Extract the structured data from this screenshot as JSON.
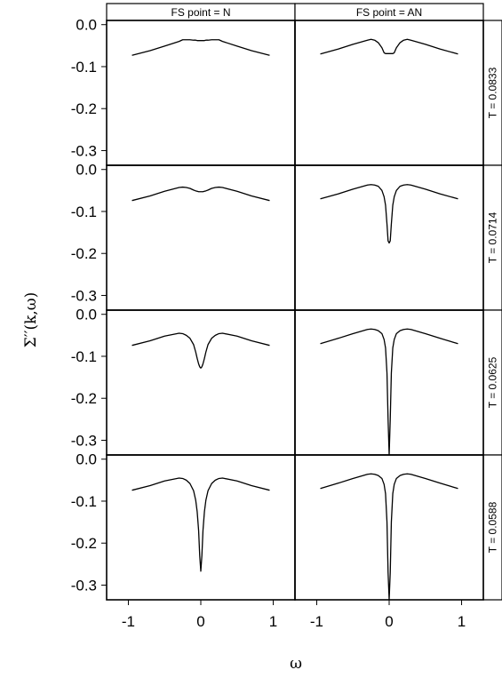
{
  "chart_data": {
    "type": "line",
    "layout": "trellis",
    "ylabel": "Σ′′(k,ω)",
    "xlabel": "ω",
    "xlim": [
      -1.3,
      1.3
    ],
    "ylim": [
      -0.335,
      0.01
    ],
    "xticks": [
      -1,
      0,
      1
    ],
    "yticks": [
      0.0,
      -0.1,
      -0.2,
      -0.3
    ],
    "ytick_labels": [
      "0.0",
      "-0.1",
      "-0.2",
      "-0.3"
    ],
    "columns": [
      {
        "label": "FS point = N"
      },
      {
        "label": "FS point = AN"
      }
    ],
    "rows": [
      {
        "label": "T = 0.0833"
      },
      {
        "label": "T = 0.0714"
      },
      {
        "label": "T = 0.0625"
      },
      {
        "label": "T = 0.0588"
      }
    ],
    "curve_x": [
      -0.95,
      -0.7,
      -0.5,
      -0.3,
      -0.25,
      -0.2,
      -0.15,
      -0.1,
      -0.07,
      -0.05,
      -0.03,
      -0.015,
      0,
      0.015,
      0.03,
      0.05,
      0.07,
      0.1,
      0.15,
      0.2,
      0.25,
      0.3,
      0.5,
      0.7,
      0.95
    ],
    "panels": [
      {
        "row": 0,
        "col": 0,
        "y": [
          -0.073,
          -0.062,
          -0.051,
          -0.04,
          -0.036,
          -0.036,
          -0.036,
          -0.037,
          -0.037,
          -0.038,
          -0.038,
          -0.038,
          -0.038,
          -0.038,
          -0.038,
          -0.038,
          -0.037,
          -0.037,
          -0.036,
          -0.036,
          -0.036,
          -0.04,
          -0.051,
          -0.062,
          -0.073
        ]
      },
      {
        "row": 0,
        "col": 1,
        "y": [
          -0.07,
          -0.058,
          -0.047,
          -0.037,
          -0.035,
          -0.037,
          -0.043,
          -0.055,
          -0.067,
          -0.069,
          -0.069,
          -0.069,
          -0.069,
          -0.069,
          -0.069,
          -0.069,
          -0.067,
          -0.055,
          -0.043,
          -0.037,
          -0.035,
          -0.037,
          -0.047,
          -0.058,
          -0.07
        ]
      },
      {
        "row": 1,
        "col": 0,
        "y": [
          -0.074,
          -0.063,
          -0.052,
          -0.043,
          -0.042,
          -0.043,
          -0.045,
          -0.049,
          -0.051,
          -0.052,
          -0.053,
          -0.053,
          -0.053,
          -0.053,
          -0.053,
          -0.052,
          -0.051,
          -0.049,
          -0.045,
          -0.043,
          -0.042,
          -0.043,
          -0.052,
          -0.063,
          -0.074
        ]
      },
      {
        "row": 1,
        "col": 1,
        "y": [
          -0.07,
          -0.058,
          -0.047,
          -0.037,
          -0.036,
          -0.037,
          -0.04,
          -0.05,
          -0.065,
          -0.085,
          -0.13,
          -0.17,
          -0.175,
          -0.17,
          -0.13,
          -0.085,
          -0.065,
          -0.05,
          -0.04,
          -0.037,
          -0.036,
          -0.037,
          -0.047,
          -0.058,
          -0.07
        ]
      },
      {
        "row": 2,
        "col": 0,
        "y": [
          -0.074,
          -0.063,
          -0.052,
          -0.045,
          -0.046,
          -0.05,
          -0.057,
          -0.072,
          -0.09,
          -0.105,
          -0.118,
          -0.125,
          -0.128,
          -0.125,
          -0.118,
          -0.105,
          -0.09,
          -0.072,
          -0.057,
          -0.05,
          -0.046,
          -0.045,
          -0.052,
          -0.063,
          -0.074
        ]
      },
      {
        "row": 2,
        "col": 1,
        "y": [
          -0.07,
          -0.057,
          -0.046,
          -0.036,
          -0.035,
          -0.036,
          -0.039,
          -0.046,
          -0.06,
          -0.08,
          -0.14,
          -0.25,
          -0.335,
          -0.25,
          -0.14,
          -0.08,
          -0.06,
          -0.046,
          -0.039,
          -0.036,
          -0.035,
          -0.036,
          -0.046,
          -0.057,
          -0.07
        ]
      },
      {
        "row": 3,
        "col": 0,
        "y": [
          -0.074,
          -0.063,
          -0.052,
          -0.045,
          -0.046,
          -0.05,
          -0.058,
          -0.075,
          -0.098,
          -0.125,
          -0.17,
          -0.23,
          -0.267,
          -0.23,
          -0.17,
          -0.125,
          -0.098,
          -0.075,
          -0.058,
          -0.05,
          -0.046,
          -0.045,
          -0.052,
          -0.063,
          -0.074
        ]
      },
      {
        "row": 3,
        "col": 1,
        "y": [
          -0.07,
          -0.057,
          -0.046,
          -0.036,
          -0.035,
          -0.036,
          -0.039,
          -0.046,
          -0.06,
          -0.082,
          -0.15,
          -0.27,
          -0.335,
          -0.27,
          -0.15,
          -0.082,
          -0.06,
          -0.046,
          -0.039,
          -0.036,
          -0.035,
          -0.036,
          -0.046,
          -0.057,
          -0.07
        ]
      }
    ]
  }
}
